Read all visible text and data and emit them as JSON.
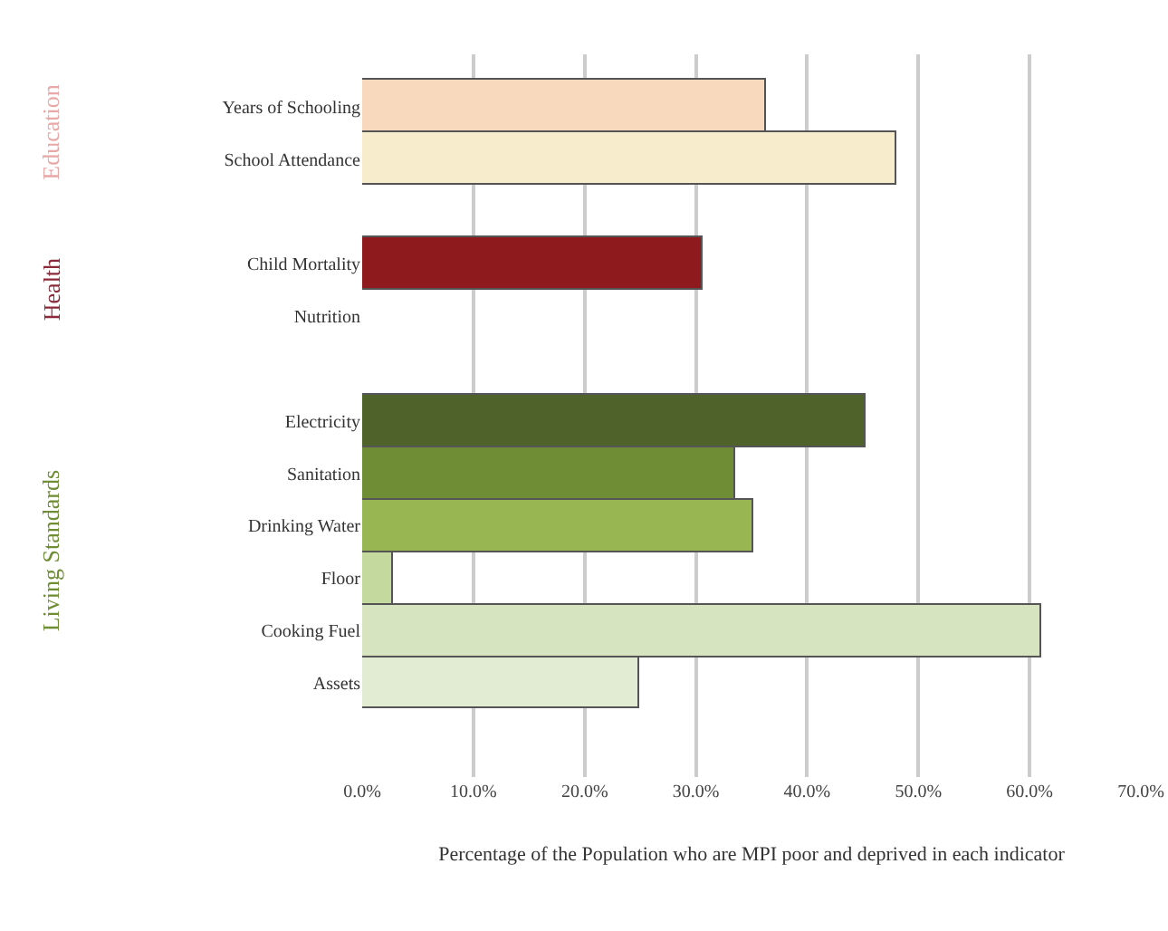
{
  "chart_data": {
    "type": "bar",
    "orientation": "horizontal",
    "categories": [
      "Years of Schooling",
      "School Attendance",
      null,
      "Child Mortality",
      "Nutrition",
      null,
      "Electricity",
      "Sanitation",
      "Drinking Water",
      "Floor",
      "Cooking Fuel",
      "Assets"
    ],
    "values": [
      36.3,
      48.0,
      null,
      30.6,
      null,
      null,
      45.2,
      33.6,
      35.1,
      2.7,
      61.0,
      24.9
    ],
    "colors": [
      "#f8d9bd",
      "#f7eccb",
      "#ffffff",
      "#8e1a1e",
      "#ffffff",
      "#ffffff",
      "#4e6229",
      "#6f8d35",
      "#98b752",
      "#c3d99d",
      "#d6e4bf",
      "#e2ecd3"
    ],
    "xlabel": "Percentage of the Population who are MPI poor and deprived in each indicator",
    "xlim": [
      0,
      70
    ],
    "xticks": [
      {
        "value": 0,
        "label": "0.0%"
      },
      {
        "value": 10,
        "label": "10.0%"
      },
      {
        "value": 20,
        "label": "20.0%"
      },
      {
        "value": 30,
        "label": "30.0%"
      },
      {
        "value": 40,
        "label": "40.0%"
      },
      {
        "value": 50,
        "label": "50.0%"
      },
      {
        "value": 60,
        "label": "60.0%"
      },
      {
        "value": 70,
        "label": "70.0%"
      }
    ],
    "grid": "x",
    "annotations": [
      "Education",
      "Health",
      "Living Standards"
    ]
  }
}
